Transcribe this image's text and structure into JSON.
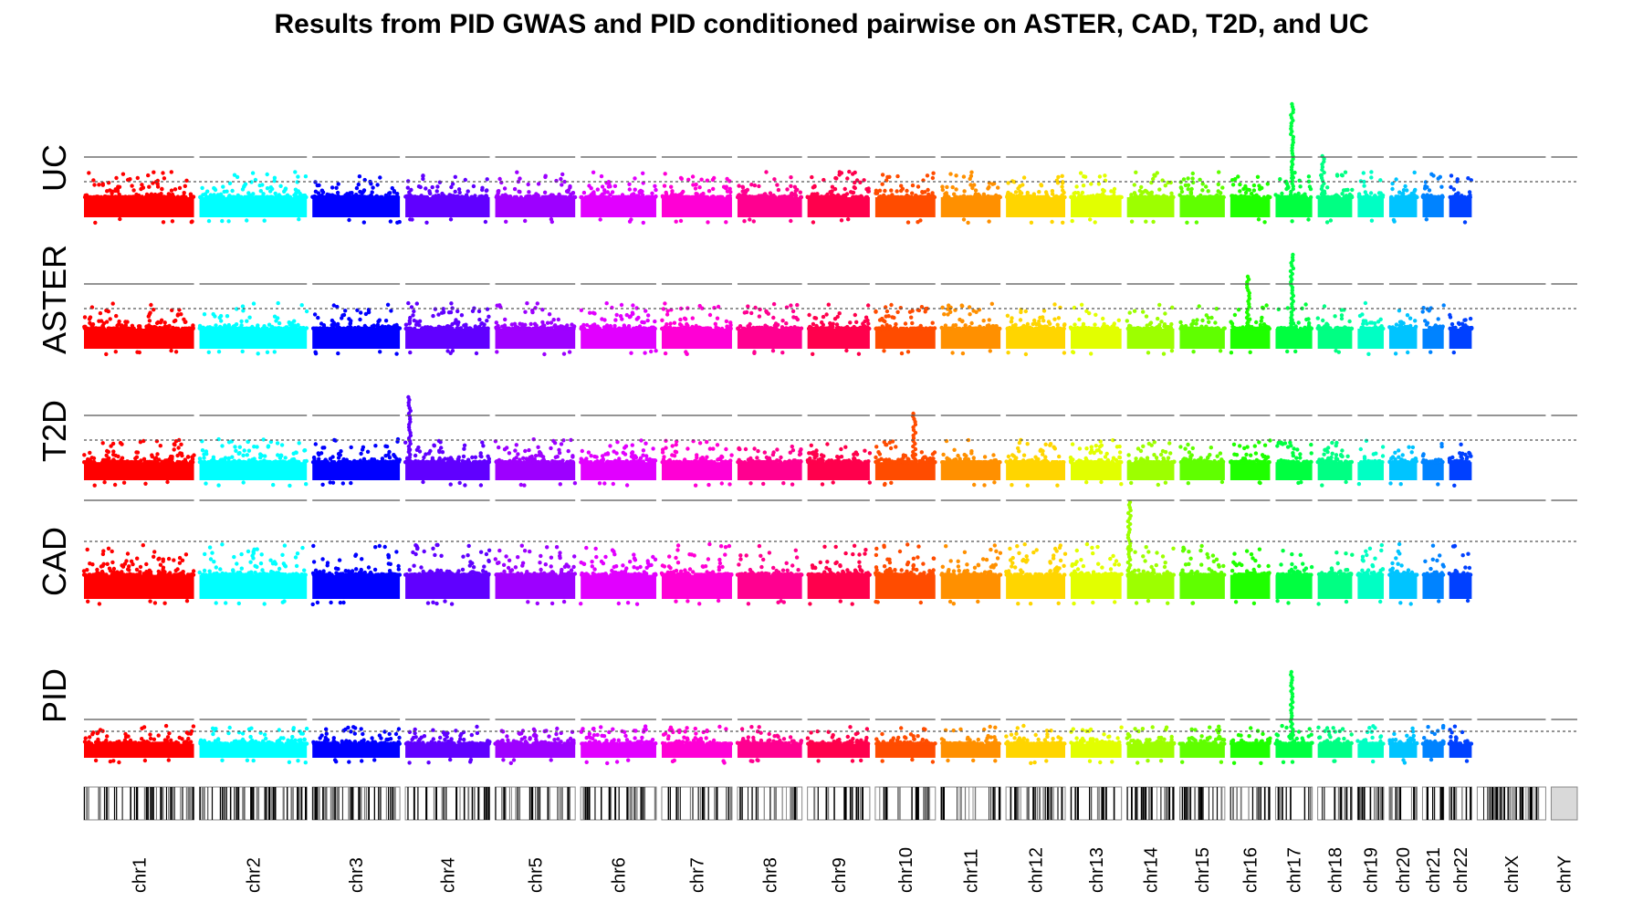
{
  "chart_data": {
    "type": "scatter",
    "title": "Results from PID GWAS and PID conditioned pairwise on ASTER, CAD, T2D, and UC",
    "tracks": [
      "UC",
      "ASTER",
      "T2D",
      "CAD",
      "PID"
    ],
    "chromosomes": [
      {
        "name": "chr1",
        "color": "#ff0000",
        "size": 249
      },
      {
        "name": "chr2",
        "color": "#00ffff",
        "size": 243
      },
      {
        "name": "chr3",
        "color": "#0000ff",
        "size": 198
      },
      {
        "name": "chr4",
        "color": "#6000ff",
        "size": 191
      },
      {
        "name": "chr5",
        "color": "#9d00ff",
        "size": 181
      },
      {
        "name": "chr6",
        "color": "#e100ff",
        "size": 171
      },
      {
        "name": "chr7",
        "color": "#ff00d5",
        "size": 159
      },
      {
        "name": "chr8",
        "color": "#ff0090",
        "size": 146
      },
      {
        "name": "chr9",
        "color": "#ff004c",
        "size": 141
      },
      {
        "name": "chr10",
        "color": "#ff4c00",
        "size": 136
      },
      {
        "name": "chr11",
        "color": "#ff9000",
        "size": 135
      },
      {
        "name": "chr12",
        "color": "#ffd500",
        "size": 134
      },
      {
        "name": "chr13",
        "color": "#e2ff00",
        "size": 115
      },
      {
        "name": "chr14",
        "color": "#9dff00",
        "size": 107
      },
      {
        "name": "chr15",
        "color": "#60ff00",
        "size": 102
      },
      {
        "name": "chr16",
        "color": "#1fff00",
        "size": 90
      },
      {
        "name": "chr17",
        "color": "#00ff40",
        "size": 83
      },
      {
        "name": "chr18",
        "color": "#00ff83",
        "size": 78
      },
      {
        "name": "chr19",
        "color": "#00ffc4",
        "size": 59
      },
      {
        "name": "chr20",
        "color": "#00c4ff",
        "size": 63
      },
      {
        "name": "chr21",
        "color": "#0083ff",
        "size": 48
      },
      {
        "name": "chr22",
        "color": "#0040ff",
        "size": 51
      },
      {
        "name": "chrX",
        "color": "#000000",
        "size": 155
      },
      {
        "name": "chrY",
        "color": "#d9d9d9",
        "size": 59
      }
    ],
    "peaks": [
      {
        "track": "UC",
        "chr": "chr17",
        "pos": 0.45,
        "level": 1.3
      },
      {
        "track": "UC",
        "chr": "chr18",
        "pos": 0.15,
        "level": 0.6
      },
      {
        "track": "ASTER",
        "chr": "chr16",
        "pos": 0.45,
        "level": 0.75
      },
      {
        "track": "ASTER",
        "chr": "chr17",
        "pos": 0.45,
        "level": 1.05
      },
      {
        "track": "T2D",
        "chr": "chr10",
        "pos": 0.65,
        "level": 0.7
      },
      {
        "track": "T2D",
        "chr": "chr4",
        "pos": 0.05,
        "level": 0.9
      },
      {
        "track": "CAD",
        "chr": "chr14",
        "pos": 0.05,
        "level": 1.0
      },
      {
        "track": "PID",
        "chr": "chr17",
        "pos": 0.45,
        "level": 1.0
      }
    ],
    "grid": true,
    "legend": "none"
  }
}
